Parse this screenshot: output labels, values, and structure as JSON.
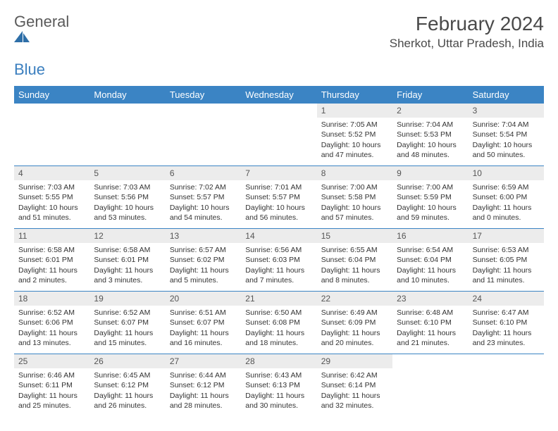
{
  "brand": {
    "name_gray": "General",
    "name_blue": "Blue"
  },
  "title": "February 2024",
  "location": "Sherkot, Uttar Pradesh, India",
  "colors": {
    "header_bg": "#3b84c4",
    "header_text": "#ffffff",
    "daynum_bg": "#ececec",
    "daynum_text": "#555555",
    "body_text": "#333333",
    "rule": "#3b84c4"
  },
  "day_labels": [
    "Sunday",
    "Monday",
    "Tuesday",
    "Wednesday",
    "Thursday",
    "Friday",
    "Saturday"
  ],
  "weeks": [
    [
      null,
      null,
      null,
      null,
      {
        "n": "1",
        "sr": "Sunrise: 7:05 AM",
        "ss": "Sunset: 5:52 PM",
        "dl": "Daylight: 10 hours and 47 minutes."
      },
      {
        "n": "2",
        "sr": "Sunrise: 7:04 AM",
        "ss": "Sunset: 5:53 PM",
        "dl": "Daylight: 10 hours and 48 minutes."
      },
      {
        "n": "3",
        "sr": "Sunrise: 7:04 AM",
        "ss": "Sunset: 5:54 PM",
        "dl": "Daylight: 10 hours and 50 minutes."
      }
    ],
    [
      {
        "n": "4",
        "sr": "Sunrise: 7:03 AM",
        "ss": "Sunset: 5:55 PM",
        "dl": "Daylight: 10 hours and 51 minutes."
      },
      {
        "n": "5",
        "sr": "Sunrise: 7:03 AM",
        "ss": "Sunset: 5:56 PM",
        "dl": "Daylight: 10 hours and 53 minutes."
      },
      {
        "n": "6",
        "sr": "Sunrise: 7:02 AM",
        "ss": "Sunset: 5:57 PM",
        "dl": "Daylight: 10 hours and 54 minutes."
      },
      {
        "n": "7",
        "sr": "Sunrise: 7:01 AM",
        "ss": "Sunset: 5:57 PM",
        "dl": "Daylight: 10 hours and 56 minutes."
      },
      {
        "n": "8",
        "sr": "Sunrise: 7:00 AM",
        "ss": "Sunset: 5:58 PM",
        "dl": "Daylight: 10 hours and 57 minutes."
      },
      {
        "n": "9",
        "sr": "Sunrise: 7:00 AM",
        "ss": "Sunset: 5:59 PM",
        "dl": "Daylight: 10 hours and 59 minutes."
      },
      {
        "n": "10",
        "sr": "Sunrise: 6:59 AM",
        "ss": "Sunset: 6:00 PM",
        "dl": "Daylight: 11 hours and 0 minutes."
      }
    ],
    [
      {
        "n": "11",
        "sr": "Sunrise: 6:58 AM",
        "ss": "Sunset: 6:01 PM",
        "dl": "Daylight: 11 hours and 2 minutes."
      },
      {
        "n": "12",
        "sr": "Sunrise: 6:58 AM",
        "ss": "Sunset: 6:01 PM",
        "dl": "Daylight: 11 hours and 3 minutes."
      },
      {
        "n": "13",
        "sr": "Sunrise: 6:57 AM",
        "ss": "Sunset: 6:02 PM",
        "dl": "Daylight: 11 hours and 5 minutes."
      },
      {
        "n": "14",
        "sr": "Sunrise: 6:56 AM",
        "ss": "Sunset: 6:03 PM",
        "dl": "Daylight: 11 hours and 7 minutes."
      },
      {
        "n": "15",
        "sr": "Sunrise: 6:55 AM",
        "ss": "Sunset: 6:04 PM",
        "dl": "Daylight: 11 hours and 8 minutes."
      },
      {
        "n": "16",
        "sr": "Sunrise: 6:54 AM",
        "ss": "Sunset: 6:04 PM",
        "dl": "Daylight: 11 hours and 10 minutes."
      },
      {
        "n": "17",
        "sr": "Sunrise: 6:53 AM",
        "ss": "Sunset: 6:05 PM",
        "dl": "Daylight: 11 hours and 11 minutes."
      }
    ],
    [
      {
        "n": "18",
        "sr": "Sunrise: 6:52 AM",
        "ss": "Sunset: 6:06 PM",
        "dl": "Daylight: 11 hours and 13 minutes."
      },
      {
        "n": "19",
        "sr": "Sunrise: 6:52 AM",
        "ss": "Sunset: 6:07 PM",
        "dl": "Daylight: 11 hours and 15 minutes."
      },
      {
        "n": "20",
        "sr": "Sunrise: 6:51 AM",
        "ss": "Sunset: 6:07 PM",
        "dl": "Daylight: 11 hours and 16 minutes."
      },
      {
        "n": "21",
        "sr": "Sunrise: 6:50 AM",
        "ss": "Sunset: 6:08 PM",
        "dl": "Daylight: 11 hours and 18 minutes."
      },
      {
        "n": "22",
        "sr": "Sunrise: 6:49 AM",
        "ss": "Sunset: 6:09 PM",
        "dl": "Daylight: 11 hours and 20 minutes."
      },
      {
        "n": "23",
        "sr": "Sunrise: 6:48 AM",
        "ss": "Sunset: 6:10 PM",
        "dl": "Daylight: 11 hours and 21 minutes."
      },
      {
        "n": "24",
        "sr": "Sunrise: 6:47 AM",
        "ss": "Sunset: 6:10 PM",
        "dl": "Daylight: 11 hours and 23 minutes."
      }
    ],
    [
      {
        "n": "25",
        "sr": "Sunrise: 6:46 AM",
        "ss": "Sunset: 6:11 PM",
        "dl": "Daylight: 11 hours and 25 minutes."
      },
      {
        "n": "26",
        "sr": "Sunrise: 6:45 AM",
        "ss": "Sunset: 6:12 PM",
        "dl": "Daylight: 11 hours and 26 minutes."
      },
      {
        "n": "27",
        "sr": "Sunrise: 6:44 AM",
        "ss": "Sunset: 6:12 PM",
        "dl": "Daylight: 11 hours and 28 minutes."
      },
      {
        "n": "28",
        "sr": "Sunrise: 6:43 AM",
        "ss": "Sunset: 6:13 PM",
        "dl": "Daylight: 11 hours and 30 minutes."
      },
      {
        "n": "29",
        "sr": "Sunrise: 6:42 AM",
        "ss": "Sunset: 6:14 PM",
        "dl": "Daylight: 11 hours and 32 minutes."
      },
      null,
      null
    ]
  ]
}
